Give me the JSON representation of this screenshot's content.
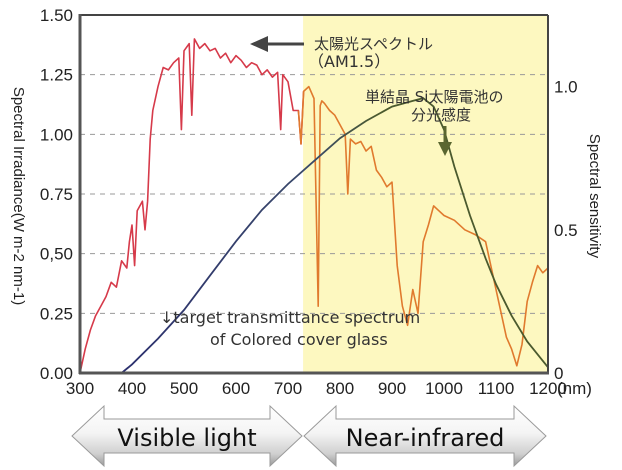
{
  "chart_data": {
    "type": "line",
    "title": "",
    "xlabel": "(nm)",
    "ylabel": "Spectral Irradiance(W m-2 nm-1)",
    "y2label": "Spectral sensitivity",
    "xlim": [
      300,
      1200
    ],
    "ylim": [
      0,
      1.5
    ],
    "y2lim": [
      0,
      1.25
    ],
    "x_ticks": [
      "300",
      "400",
      "500",
      "600",
      "700",
      "800",
      "900",
      "1000",
      "1100",
      "1200"
    ],
    "y_ticks": [
      "0.00",
      "0.25",
      "0,50",
      "0.75",
      "1.00",
      "1.25",
      "1.50"
    ],
    "y2_ticks": [
      "0",
      "0.5",
      "1.0"
    ],
    "grid": "horizontal dashed",
    "highlight_region": {
      "from": 729,
      "to": 1200,
      "color": "#fdf8c0"
    },
    "series": [
      {
        "name": "太陽光スペクトル (AM1.5)",
        "axis": "left",
        "color_visible": "#d63a4a",
        "color_nir": "#e07a2e",
        "x": [
          300,
          310,
          320,
          330,
          340,
          350,
          360,
          370,
          380,
          390,
          395,
          400,
          405,
          410,
          420,
          425,
          430,
          435,
          440,
          450,
          460,
          470,
          480,
          490,
          495,
          500,
          510,
          515,
          520,
          530,
          540,
          550,
          560,
          570,
          580,
          590,
          600,
          610,
          620,
          630,
          640,
          650,
          660,
          670,
          680,
          686,
          690,
          700,
          710,
          720,
          725,
          730,
          740,
          750,
          758,
          762,
          765,
          770,
          780,
          790,
          800,
          810,
          815,
          820,
          830,
          840,
          850,
          860,
          870,
          880,
          890,
          900,
          910,
          920,
          930,
          940,
          950,
          960,
          970,
          980,
          990,
          1000,
          1020,
          1040,
          1060,
          1080,
          1090,
          1100,
          1110,
          1120,
          1130,
          1140,
          1150,
          1160,
          1170,
          1180,
          1190,
          1200
        ],
        "values": [
          0.0,
          0.1,
          0.18,
          0.24,
          0.28,
          0.32,
          0.38,
          0.36,
          0.47,
          0.44,
          0.55,
          0.62,
          0.45,
          0.68,
          0.72,
          0.6,
          0.72,
          0.98,
          1.1,
          1.2,
          1.28,
          1.27,
          1.3,
          1.32,
          1.02,
          1.35,
          1.38,
          1.08,
          1.4,
          1.36,
          1.38,
          1.35,
          1.36,
          1.32,
          1.34,
          1.3,
          1.33,
          1.31,
          1.28,
          1.3,
          1.29,
          1.25,
          1.27,
          1.24,
          1.26,
          1.02,
          1.25,
          1.22,
          1.1,
          1.1,
          0.96,
          1.18,
          1.2,
          1.15,
          0.28,
          1.12,
          1.14,
          1.13,
          1.1,
          1.08,
          1.04,
          1.0,
          0.75,
          0.98,
          0.96,
          0.97,
          0.93,
          0.95,
          0.85,
          0.82,
          0.78,
          0.8,
          0.45,
          0.28,
          0.2,
          0.35,
          0.25,
          0.55,
          0.62,
          0.7,
          0.68,
          0.66,
          0.64,
          0.6,
          0.58,
          0.55,
          0.45,
          0.35,
          0.25,
          0.15,
          0.1,
          0.03,
          0.12,
          0.3,
          0.38,
          0.45,
          0.42,
          0.44
        ]
      },
      {
        "name": "単結晶 Si太陽電池の 分光感度",
        "axis": "right",
        "color_start": "#2b2f6e",
        "color_end": "#4b5a2e",
        "x": [
          380,
          400,
          450,
          500,
          550,
          600,
          650,
          700,
          750,
          800,
          850,
          900,
          940,
          960,
          980,
          1000,
          1020,
          1050,
          1080,
          1100,
          1130,
          1160,
          1200
        ],
        "values": [
          0.0,
          0.03,
          0.12,
          0.22,
          0.34,
          0.46,
          0.57,
          0.66,
          0.74,
          0.82,
          0.88,
          0.93,
          0.95,
          0.96,
          0.93,
          0.85,
          0.72,
          0.55,
          0.4,
          0.31,
          0.2,
          0.11,
          0.02
        ]
      }
    ],
    "annotations": {
      "am15_line1": "太陽光スペクトル",
      "am15_line2": "（AM1.5）",
      "si_line1": "単結晶 Si太陽電池の",
      "si_line2": "分光感度",
      "target_line1": "↓target transmittance spectrum",
      "target_line2": "of Colored cover glass"
    },
    "bands": {
      "visible": "Visible light",
      "near_infrared": "Near-infrared"
    }
  }
}
